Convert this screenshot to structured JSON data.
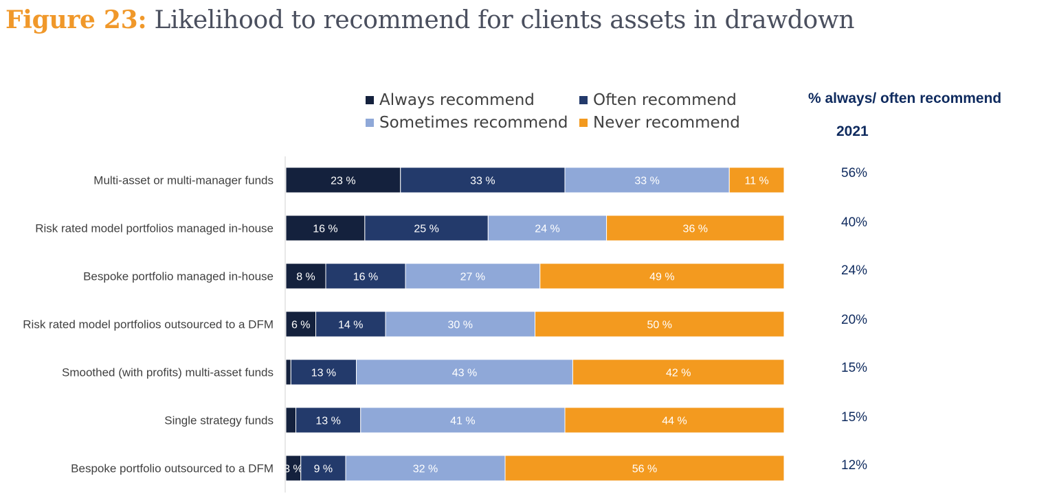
{
  "title": {
    "label": "Figure 23:",
    "text": " Likelihood to recommend for clients assets in drawdown"
  },
  "side_panel": {
    "title": "% always/ often recommend",
    "year": "2021",
    "values": [
      "56%",
      "40%",
      "24%",
      "20%",
      "15%",
      "15%",
      "12%"
    ]
  },
  "colors": {
    "always": "#14213d",
    "often": "#233a6b",
    "sometimes": "#8fa8d8",
    "never": "#f39a1f",
    "title_accent": "#f0982a",
    "side_text": "#0e2a5e"
  },
  "chart_data": {
    "type": "bar",
    "orientation": "horizontal",
    "stacked": true,
    "xlim": [
      0,
      100
    ],
    "legend_position": "top",
    "categories": [
      "Multi-asset or multi-manager funds",
      "Risk rated model portfolios managed in-house",
      "Bespoke portfolio managed in-house",
      "Risk rated model portfolios outsourced to a DFM",
      "Smoothed (with profits) multi-asset funds",
      "Single strategy funds",
      "Bespoke portfolio outsourced to a DFM"
    ],
    "series": [
      {
        "name": "Always recommend",
        "values": [
          23,
          16,
          8,
          6,
          1,
          2,
          3
        ],
        "labels": [
          "23 %",
          "16 %",
          "8 %",
          "6 %",
          "",
          "",
          "3 %"
        ]
      },
      {
        "name": "Often recommend",
        "values": [
          33,
          25,
          16,
          14,
          13,
          13,
          9
        ],
        "labels": [
          "33 %",
          "25 %",
          "16 %",
          "14 %",
          "13 %",
          "13 %",
          "9 %"
        ]
      },
      {
        "name": "Sometimes recommend",
        "values": [
          33,
          24,
          27,
          30,
          43,
          41,
          32
        ],
        "labels": [
          "33 %",
          "24 %",
          "27 %",
          "30 %",
          "43 %",
          "41 %",
          "32 %"
        ]
      },
      {
        "name": "Never recommend",
        "values": [
          11,
          36,
          49,
          50,
          42,
          44,
          56
        ],
        "labels": [
          "11 %",
          "36 %",
          "49 %",
          "50 %",
          "42 %",
          "44 %",
          "56 %"
        ]
      }
    ]
  }
}
